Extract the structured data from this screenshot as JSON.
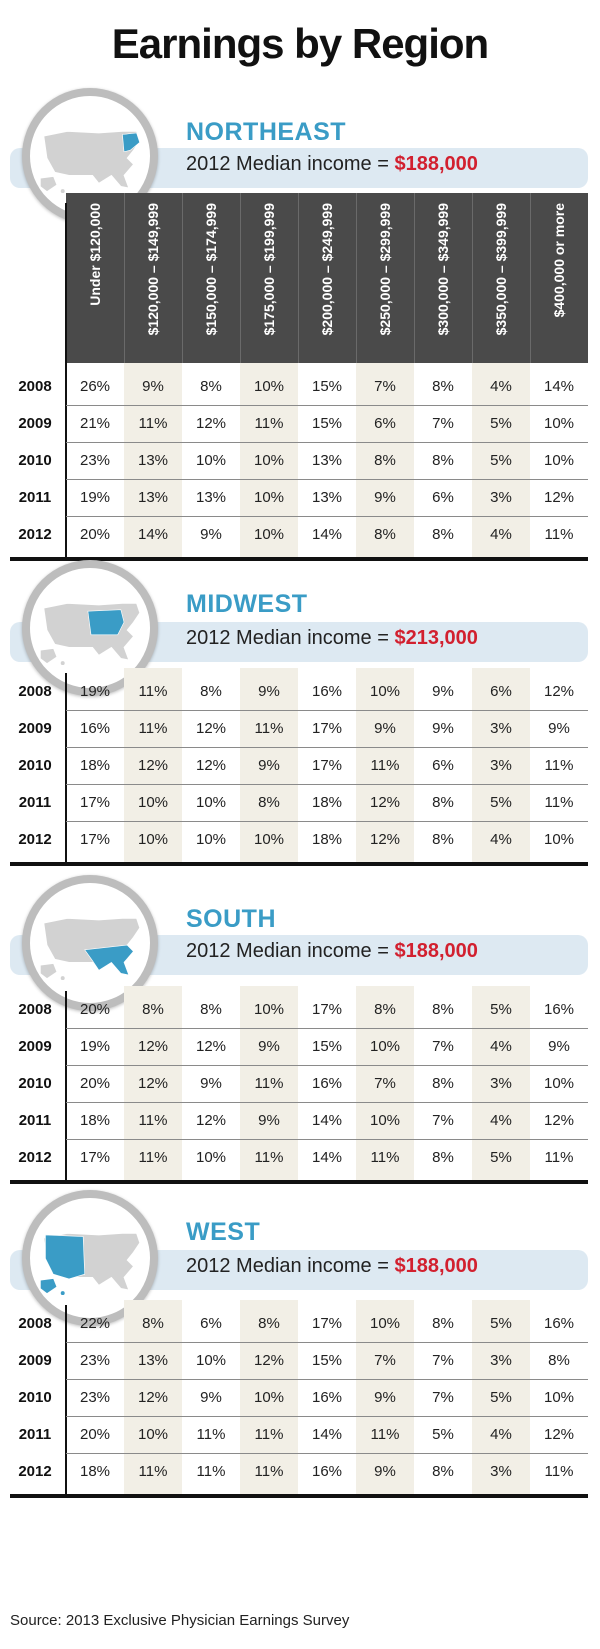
{
  "title": "Earnings by Region",
  "median_prefix": "2012 Median income = ",
  "columns": [
    "Under $120,000",
    "$120,000 – $149,999",
    "$150,000 – $174,999",
    "$175,000 – $199,999",
    "$200,000 – $249,999",
    "$250,000 – $299,999",
    "$300,000 – $349,999",
    "$350,000 – $399,999",
    "$400,000 or more"
  ],
  "source": "Source: 2013 Exclusive Physician Earnings Survey",
  "colors": {
    "accent": "#3a9cc6",
    "median_value": "#d2202f",
    "header_bg": "#4a4a4a",
    "banner": "#dde9f2",
    "map_gray": "#d2d2d2"
  },
  "chart_data": {
    "type": "table",
    "title": "Earnings by Region",
    "categories": [
      "Under $120,000",
      "$120,000 – $149,999",
      "$150,000 – $174,999",
      "$175,000 – $199,999",
      "$200,000 – $249,999",
      "$250,000 – $299,999",
      "$300,000 – $349,999",
      "$350,000 – $399,999",
      "$400,000 or more"
    ],
    "regions": [
      {
        "name": "NORTHEAST",
        "median": "$188,000",
        "rows": [
          {
            "year": "2008",
            "values": [
              "26%",
              "9%",
              "8%",
              "10%",
              "15%",
              "7%",
              "8%",
              "4%",
              "14%"
            ]
          },
          {
            "year": "2009",
            "values": [
              "21%",
              "11%",
              "12%",
              "11%",
              "15%",
              "6%",
              "7%",
              "5%",
              "10%"
            ]
          },
          {
            "year": "2010",
            "values": [
              "23%",
              "13%",
              "10%",
              "10%",
              "13%",
              "8%",
              "8%",
              "5%",
              "10%"
            ]
          },
          {
            "year": "2011",
            "values": [
              "19%",
              "13%",
              "13%",
              "10%",
              "13%",
              "9%",
              "6%",
              "3%",
              "12%"
            ]
          },
          {
            "year": "2012",
            "values": [
              "20%",
              "14%",
              "9%",
              "10%",
              "14%",
              "8%",
              "8%",
              "4%",
              "11%"
            ]
          }
        ]
      },
      {
        "name": "MIDWEST",
        "median": "$213,000",
        "rows": [
          {
            "year": "2008",
            "values": [
              "19%",
              "11%",
              "8%",
              "9%",
              "16%",
              "10%",
              "9%",
              "6%",
              "12%"
            ]
          },
          {
            "year": "2009",
            "values": [
              "16%",
              "11%",
              "12%",
              "11%",
              "17%",
              "9%",
              "9%",
              "3%",
              "9%"
            ]
          },
          {
            "year": "2010",
            "values": [
              "18%",
              "12%",
              "12%",
              "9%",
              "17%",
              "11%",
              "6%",
              "3%",
              "11%"
            ]
          },
          {
            "year": "2011",
            "values": [
              "17%",
              "10%",
              "10%",
              "8%",
              "18%",
              "12%",
              "8%",
              "5%",
              "11%"
            ]
          },
          {
            "year": "2012",
            "values": [
              "17%",
              "10%",
              "10%",
              "10%",
              "18%",
              "12%",
              "8%",
              "4%",
              "10%"
            ]
          }
        ]
      },
      {
        "name": "SOUTH",
        "median": "$188,000",
        "rows": [
          {
            "year": "2008",
            "values": [
              "20%",
              "8%",
              "8%",
              "10%",
              "17%",
              "8%",
              "8%",
              "5%",
              "16%"
            ]
          },
          {
            "year": "2009",
            "values": [
              "19%",
              "12%",
              "12%",
              "9%",
              "15%",
              "10%",
              "7%",
              "4%",
              "9%"
            ]
          },
          {
            "year": "2010",
            "values": [
              "20%",
              "12%",
              "9%",
              "11%",
              "16%",
              "7%",
              "8%",
              "3%",
              "10%"
            ]
          },
          {
            "year": "2011",
            "values": [
              "18%",
              "11%",
              "12%",
              "9%",
              "14%",
              "10%",
              "7%",
              "4%",
              "12%"
            ]
          },
          {
            "year": "2012",
            "values": [
              "17%",
              "11%",
              "10%",
              "11%",
              "14%",
              "11%",
              "8%",
              "5%",
              "11%"
            ]
          }
        ]
      },
      {
        "name": "WEST",
        "median": "$188,000",
        "rows": [
          {
            "year": "2008",
            "values": [
              "22%",
              "8%",
              "6%",
              "8%",
              "17%",
              "10%",
              "8%",
              "5%",
              "16%"
            ]
          },
          {
            "year": "2009",
            "values": [
              "23%",
              "13%",
              "10%",
              "12%",
              "15%",
              "7%",
              "7%",
              "3%",
              "8%"
            ]
          },
          {
            "year": "2010",
            "values": [
              "23%",
              "12%",
              "9%",
              "10%",
              "16%",
              "9%",
              "7%",
              "5%",
              "10%"
            ]
          },
          {
            "year": "2011",
            "values": [
              "20%",
              "10%",
              "11%",
              "11%",
              "14%",
              "11%",
              "5%",
              "4%",
              "12%"
            ]
          },
          {
            "year": "2012",
            "values": [
              "18%",
              "11%",
              "11%",
              "11%",
              "16%",
              "9%",
              "8%",
              "3%",
              "11%"
            ]
          }
        ]
      }
    ]
  }
}
